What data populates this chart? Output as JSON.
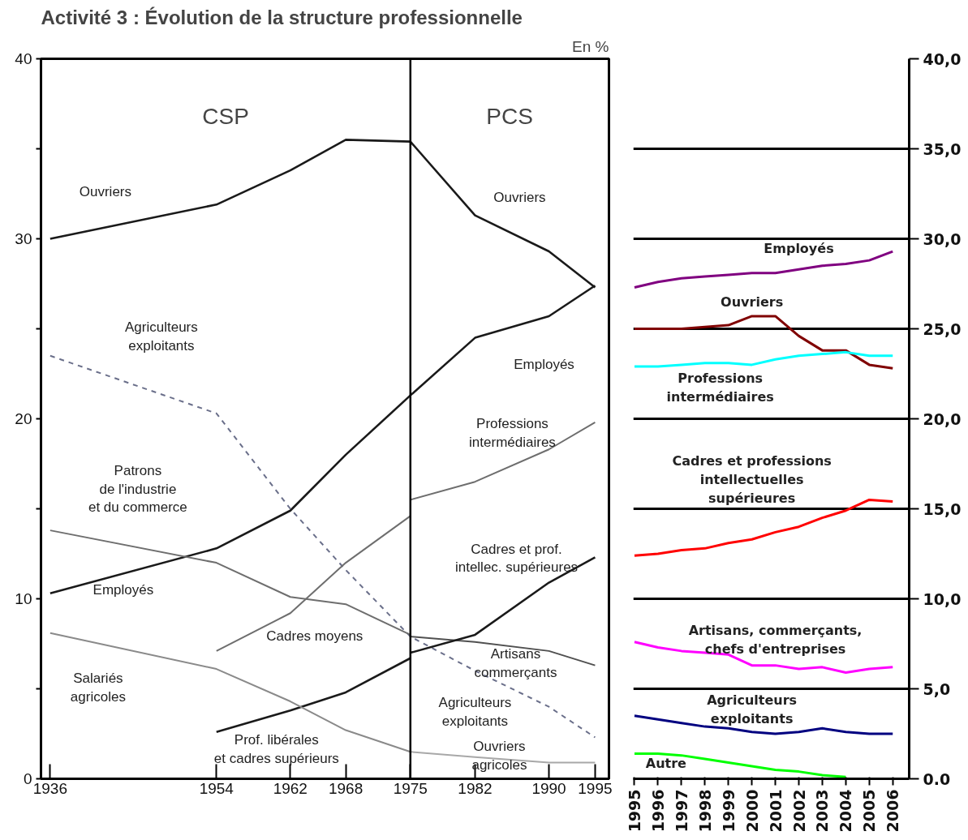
{
  "chart_data": [
    {
      "type": "line",
      "title": "Activité 3 : Évolution de la structure professionnelle",
      "xlim": [
        1935,
        1996.5
      ],
      "xticks": [
        1936,
        1954,
        1962,
        1968,
        1975,
        1982,
        1990,
        1995
      ],
      "ylim": [
        0,
        40
      ],
      "yticks": [
        0,
        {
          "value": 5,
          "label": null
        },
        10,
        {
          "value": 15,
          "label": null
        },
        20,
        {
          "value": 25,
          "label": null
        },
        30,
        {
          "value": 35,
          "label": null
        },
        40
      ],
      "series": [
        {
          "name": "Ouvriers",
          "color": "#1a1a1a",
          "x": [
            1936,
            1954,
            1962,
            1968,
            1975,
            1982,
            1990,
            1995
          ],
          "values": [
            30.0,
            31.9,
            33.8,
            35.5,
            35.4,
            31.3,
            29.3,
            27.3
          ]
        },
        {
          "name": "Employés",
          "color": "#1a1a1a",
          "x": [
            1936,
            1954,
            1962,
            1968,
            1975,
            1982,
            1990,
            1995
          ],
          "values": [
            10.3,
            12.8,
            14.9,
            18.0,
            21.3,
            24.5,
            25.7,
            27.4
          ]
        },
        {
          "name": "Agriculteurs\nexploitants",
          "color": "#6a6f8a",
          "line_style": "dashed",
          "x": [
            1936,
            1954,
            1962,
            1968,
            1975,
            1982,
            1990,
            1995
          ],
          "values": [
            23.5,
            20.3,
            15.0,
            11.6,
            7.9,
            6.0,
            4.0,
            2.3
          ]
        },
        {
          "name": "Patrons\nde l'industrie\net du commerce",
          "color": "#6e6e6e",
          "x": [
            1936,
            1954,
            1962,
            1968,
            1975
          ],
          "values": [
            13.8,
            12.0,
            10.1,
            9.7,
            8.0
          ]
        },
        {
          "name": "Artisans\ncommerçants",
          "color": "#505050",
          "x": [
            1975,
            1982,
            1990,
            1995
          ],
          "values": [
            7.9,
            7.6,
            7.1,
            6.3
          ]
        },
        {
          "name": "Cadres moyens",
          "color": "#6e6e6e",
          "x": [
            1954,
            1962,
            1968,
            1975
          ],
          "values": [
            7.1,
            9.2,
            12.0,
            14.6
          ]
        },
        {
          "name": "Professions\nintermédiaires",
          "color": "#6e6e6e",
          "x": [
            1975,
            1982,
            1990,
            1995
          ],
          "values": [
            15.5,
            16.5,
            18.3,
            19.8
          ]
        },
        {
          "name": "Prof. libérales\net cadres supérieurs",
          "color": "#1a1a1a",
          "x": [
            1954,
            1962,
            1968,
            1975
          ],
          "values": [
            2.6,
            3.8,
            4.8,
            6.7
          ]
        },
        {
          "name": "Cadres et prof.\nintellec. supérieures",
          "color": "#1a1a1a",
          "x": [
            1975,
            1982,
            1990,
            1995
          ],
          "values": [
            7.0,
            8.0,
            10.9,
            12.3
          ]
        },
        {
          "name": "Salariés\nagricoles",
          "color": "#8a8a8a",
          "x": [
            1936,
            1954,
            1962,
            1968,
            1975
          ],
          "values": [
            8.1,
            6.1,
            4.3,
            2.7,
            1.5
          ]
        },
        {
          "name": "Ouvriers\nagricoles",
          "color": "#a8a8a8",
          "x": [
            1975,
            1982,
            1990,
            1995
          ],
          "values": [
            1.5,
            1.2,
            0.9,
            0.9
          ]
        }
      ],
      "ref_lines": [
        {
          "axis": "x",
          "value": 1975,
          "color": "#000000"
        }
      ],
      "annotations": [
        "En %",
        "CSP",
        "PCS"
      ]
    },
    {
      "type": "line",
      "categories": [
        "1995",
        "1996",
        "1997",
        "1998",
        "1999",
        "2000",
        "2001",
        "2002",
        "2003",
        "2004",
        "2005",
        "2006"
      ],
      "ylim": [
        0,
        40
      ],
      "yticks": [
        {
          "value": 0,
          "label": "0.0"
        },
        {
          "value": 5,
          "label": "5,0"
        },
        {
          "value": 10,
          "label": "10,0"
        },
        {
          "value": 15,
          "label": "15,0"
        },
        {
          "value": 20,
          "label": "20,0"
        },
        {
          "value": 25,
          "label": "25,0"
        },
        {
          "value": 30,
          "label": "30,0"
        },
        {
          "value": 35,
          "label": "35,0"
        },
        {
          "value": 40,
          "label": "40,0"
        }
      ],
      "grid": "y",
      "series": [
        {
          "name": "Employés",
          "color": "#800080",
          "values": [
            27.3,
            27.6,
            27.8,
            27.9,
            28.0,
            28.1,
            28.1,
            28.3,
            28.5,
            28.6,
            28.8,
            29.3
          ]
        },
        {
          "name": "Ouvriers",
          "color": "#800000",
          "values": [
            25.0,
            25.0,
            25.0,
            25.1,
            25.2,
            25.7,
            25.7,
            24.6,
            23.8,
            23.8,
            23.0,
            22.8
          ]
        },
        {
          "name": "Professions\nintermédiaires",
          "color": "#00ffff",
          "values": [
            22.9,
            22.9,
            23.0,
            23.1,
            23.1,
            23.0,
            23.3,
            23.5,
            23.6,
            23.7,
            23.5,
            23.5
          ]
        },
        {
          "name": "Cadres et professions\nintellectuelles\nsupérieures",
          "color": "#ff0000",
          "values": [
            12.4,
            12.5,
            12.7,
            12.8,
            13.1,
            13.3,
            13.7,
            14.0,
            14.5,
            14.9,
            15.5,
            15.4
          ]
        },
        {
          "name": "Artisans, commerçants,\nchefs d'entreprises",
          "color": "#ff00ff",
          "values": [
            7.6,
            7.3,
            7.1,
            7.0,
            6.9,
            6.3,
            6.3,
            6.1,
            6.2,
            5.9,
            6.1,
            6.2
          ]
        },
        {
          "name": "Agriculteurs\nexploitants",
          "color": "#000080",
          "values": [
            3.5,
            3.3,
            3.1,
            2.9,
            2.8,
            2.6,
            2.5,
            2.6,
            2.8,
            2.6,
            2.5,
            2.5
          ]
        },
        {
          "name": "Autre",
          "color": "#00ff00",
          "values": [
            1.4,
            1.4,
            1.3,
            1.1,
            0.9,
            0.7,
            0.5,
            0.4,
            0.2,
            0.1,
            null,
            null
          ]
        }
      ]
    }
  ]
}
